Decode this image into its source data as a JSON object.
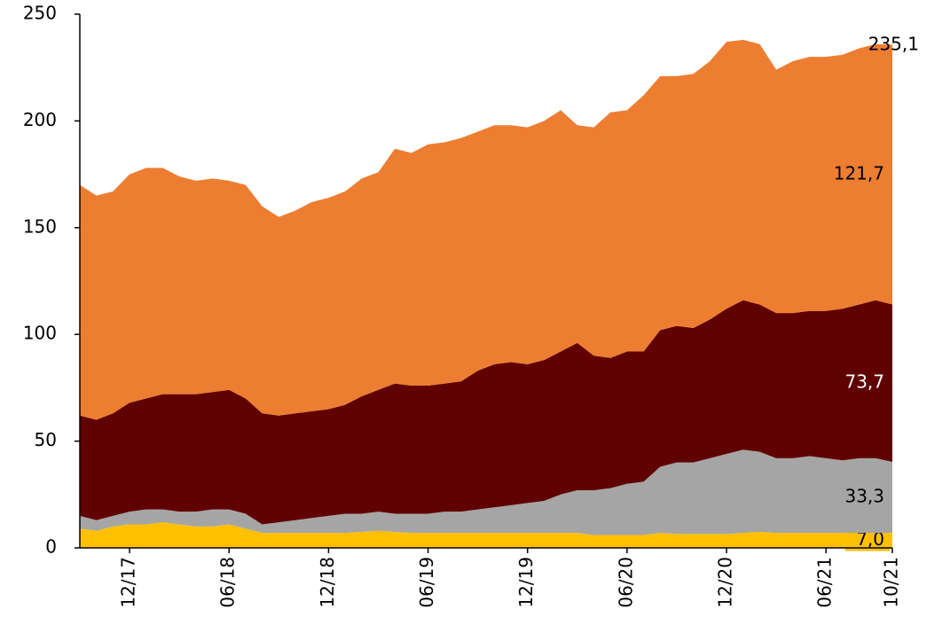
{
  "chart_data": {
    "type": "stacked_area",
    "categories": [
      null,
      null,
      null,
      "12/17",
      null,
      null,
      null,
      null,
      null,
      "06/18",
      null,
      null,
      null,
      null,
      null,
      "12/18",
      null,
      null,
      null,
      null,
      null,
      "06/19",
      null,
      null,
      null,
      null,
      null,
      "12/19",
      null,
      null,
      null,
      null,
      null,
      "06/20",
      null,
      null,
      null,
      null,
      null,
      "12/20",
      null,
      null,
      null,
      null,
      null,
      "06/21",
      null,
      null,
      null,
      "10/21"
    ],
    "series": [
      {
        "name": "yellow",
        "color": "#ffc000",
        "values": [
          9,
          8,
          10,
          11,
          11,
          12,
          11,
          10,
          10,
          11,
          9,
          7,
          7,
          7,
          7,
          7,
          7,
          7.5,
          8,
          7.5,
          7,
          7,
          7,
          7,
          7,
          7,
          7,
          7,
          7,
          7,
          7,
          6,
          6,
          6,
          6,
          7,
          6.5,
          6.5,
          6.5,
          6.5,
          7,
          7.5,
          7,
          7,
          7,
          7,
          7,
          7,
          7,
          7.0
        ],
        "value_labels": [
          null,
          null,
          null,
          null,
          null,
          null,
          null,
          null,
          null,
          null,
          null,
          null,
          null,
          null,
          null,
          null,
          null,
          null,
          null,
          null,
          null,
          null,
          null,
          null,
          null,
          null,
          null,
          null,
          null,
          null,
          null,
          null,
          null,
          null,
          null,
          null,
          null,
          null,
          null,
          null,
          null,
          null,
          null,
          null,
          null,
          null,
          null,
          null,
          null,
          "7,0"
        ]
      },
      {
        "name": "gray",
        "color": "#a5a5a5",
        "values": [
          6,
          5,
          5,
          6,
          7,
          6,
          6,
          7,
          8,
          7,
          7,
          4,
          5,
          6,
          7,
          8,
          9,
          8.5,
          9,
          8.5,
          9,
          9,
          10,
          10,
          11,
          12,
          13,
          14,
          15,
          18,
          20,
          21,
          22,
          24,
          25,
          31,
          33.5,
          33.5,
          35.5,
          37.5,
          39,
          37.5,
          35,
          35,
          36,
          35,
          34,
          35,
          35,
          33.3
        ],
        "value_labels": [
          null,
          null,
          null,
          null,
          null,
          null,
          null,
          null,
          null,
          null,
          null,
          null,
          null,
          null,
          null,
          null,
          null,
          null,
          null,
          null,
          null,
          null,
          null,
          null,
          null,
          null,
          null,
          null,
          null,
          null,
          null,
          null,
          null,
          null,
          null,
          null,
          null,
          null,
          null,
          null,
          null,
          null,
          null,
          null,
          null,
          null,
          null,
          null,
          null,
          "33,3"
        ]
      },
      {
        "name": "dark red",
        "color": "#600000",
        "values": [
          47,
          47,
          48,
          51,
          52,
          54,
          55,
          55,
          55,
          56,
          54,
          52,
          50,
          50,
          50,
          50,
          51,
          55,
          57,
          61,
          60,
          60,
          60,
          61,
          65,
          67,
          67,
          65,
          66,
          67,
          69,
          63,
          61,
          62,
          61,
          64,
          64,
          63,
          65,
          68,
          70,
          69,
          68,
          68,
          68,
          69,
          71,
          72,
          74,
          73.7
        ],
        "value_labels": [
          null,
          null,
          null,
          null,
          null,
          null,
          null,
          null,
          null,
          null,
          null,
          null,
          null,
          null,
          null,
          null,
          null,
          null,
          null,
          null,
          null,
          null,
          null,
          null,
          null,
          null,
          null,
          null,
          null,
          null,
          null,
          null,
          null,
          null,
          null,
          null,
          null,
          null,
          null,
          null,
          null,
          null,
          null,
          null,
          null,
          null,
          null,
          null,
          null,
          "73,7"
        ]
      },
      {
        "name": "orange",
        "color": "#ed7d31",
        "values": [
          108,
          105,
          104,
          107,
          108,
          106,
          102,
          100,
          100,
          98,
          100,
          97,
          93,
          95,
          98,
          99,
          100,
          102,
          102,
          110,
          109,
          113,
          113,
          114,
          112,
          112,
          111,
          111,
          112,
          113,
          102,
          107,
          115,
          113,
          120,
          119,
          117,
          119,
          121,
          125,
          122,
          122,
          114,
          118,
          119,
          119,
          119,
          120,
          120,
          121.7
        ],
        "value_labels": [
          null,
          null,
          null,
          null,
          null,
          null,
          null,
          null,
          null,
          null,
          null,
          null,
          null,
          null,
          null,
          null,
          null,
          null,
          null,
          null,
          null,
          null,
          null,
          null,
          null,
          null,
          null,
          null,
          null,
          null,
          null,
          null,
          null,
          null,
          null,
          null,
          null,
          null,
          null,
          null,
          null,
          null,
          null,
          null,
          null,
          null,
          null,
          null,
          null,
          "121,7"
        ]
      }
    ],
    "total_label": {
      "value": 235.1,
      "label": "235,1"
    },
    "ylim": [
      0,
      250
    ],
    "yticks": [
      0,
      50,
      100,
      150,
      200,
      250
    ],
    "grid": false
  }
}
